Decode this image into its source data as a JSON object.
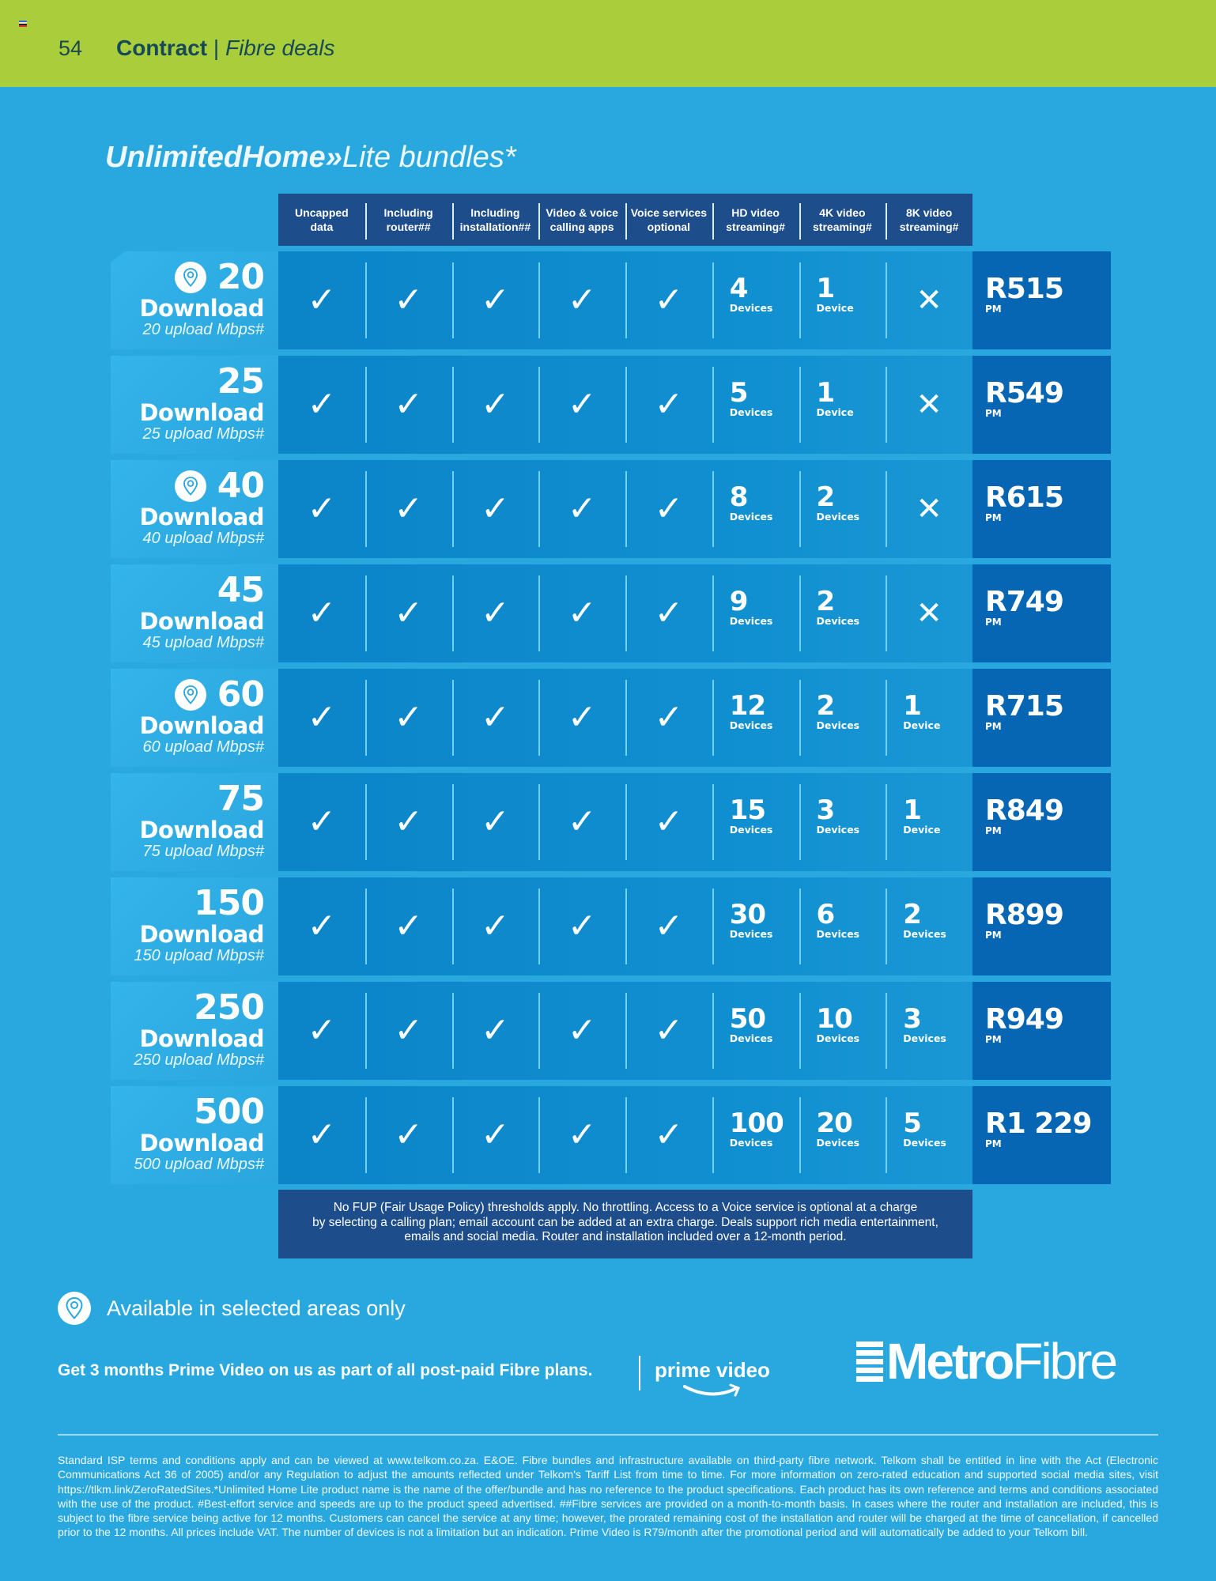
{
  "header": {
    "page_number": "54",
    "section_bold": "Contract",
    "separator": " | ",
    "section_italic": "Fibre deals"
  },
  "title": {
    "bold": "UnlimitedHome»",
    "light": "Lite bundles*"
  },
  "columns": [
    {
      "line1": "Uncapped",
      "line2": "data"
    },
    {
      "line1": "Including",
      "line2": "router##"
    },
    {
      "line1": "Including",
      "line2": "installation##"
    },
    {
      "line1": "Video & voice",
      "line2": "calling apps"
    },
    {
      "line1": "Voice services",
      "line2": "optional"
    },
    {
      "line1": "HD video",
      "line2": "streaming#"
    },
    {
      "line1": "4K video",
      "line2": "streaming#"
    },
    {
      "line1": "8K video",
      "line2": "streaming#"
    }
  ],
  "download_label": "Download",
  "price_suffix": "PM",
  "icons": {
    "check": "✓",
    "cross": "✕",
    "location": "location-pin-icon"
  },
  "bundles": [
    {
      "speed": "20",
      "pin": true,
      "upload": "20 upload Mbps#",
      "hd": "4",
      "hd_unit": "Devices",
      "k4": "1",
      "k4_unit": "Device",
      "k8": null,
      "k8_unit": "",
      "price": "R515"
    },
    {
      "speed": "25",
      "pin": false,
      "upload": "25 upload Mbps#",
      "hd": "5",
      "hd_unit": "Devices",
      "k4": "1",
      "k4_unit": "Device",
      "k8": null,
      "k8_unit": "",
      "price": "R549"
    },
    {
      "speed": "40",
      "pin": true,
      "upload": "40 upload Mbps#",
      "hd": "8",
      "hd_unit": "Devices",
      "k4": "2",
      "k4_unit": "Devices",
      "k8": null,
      "k8_unit": "",
      "price": "R615"
    },
    {
      "speed": "45",
      "pin": false,
      "upload": "45 upload Mbps#",
      "hd": "9",
      "hd_unit": "Devices",
      "k4": "2",
      "k4_unit": "Devices",
      "k8": null,
      "k8_unit": "",
      "price": "R749"
    },
    {
      "speed": "60",
      "pin": true,
      "upload": "60 upload Mbps#",
      "hd": "12",
      "hd_unit": "Devices",
      "k4": "2",
      "k4_unit": "Devices",
      "k8": "1",
      "k8_unit": "Device",
      "price": "R715"
    },
    {
      "speed": "75",
      "pin": false,
      "upload": "75 upload Mbps#",
      "hd": "15",
      "hd_unit": "Devices",
      "k4": "3",
      "k4_unit": "Devices",
      "k8": "1",
      "k8_unit": "Device",
      "price": "R849"
    },
    {
      "speed": "150",
      "pin": false,
      "upload": "150 upload Mbps#",
      "hd": "30",
      "hd_unit": "Devices",
      "k4": "6",
      "k4_unit": "Devices",
      "k8": "2",
      "k8_unit": "Devices",
      "price": "R899"
    },
    {
      "speed": "250",
      "pin": false,
      "upload": "250 upload Mbps#",
      "hd": "50",
      "hd_unit": "Devices",
      "k4": "10",
      "k4_unit": "Devices",
      "k8": "3",
      "k8_unit": "Devices",
      "price": "R949"
    },
    {
      "speed": "500",
      "pin": false,
      "upload": "500 upload Mbps#",
      "hd": "100",
      "hd_unit": "Devices",
      "k4": "20",
      "k4_unit": "Devices",
      "k8": "5",
      "k8_unit": "Devices",
      "price": "R1 229"
    }
  ],
  "note": {
    "line1": "No FUP (Fair Usage Policy) thresholds apply. No throttling. Access to a Voice service is optional at a charge",
    "line2": "by selecting a calling plan; email account can be added at an extra charge. Deals support rich media entertainment,",
    "line3": "emails and social media. Router and installation included over a 12-month period."
  },
  "availability": "Available in selected areas only",
  "promo": {
    "text": "Get 3 months Prime Video on us as part of all post-paid Fibre plans.",
    "logo": "prime video"
  },
  "partner_logo": {
    "bold": "Metro",
    "light": "Fibre"
  },
  "fine_print": "Standard ISP terms and conditions apply and can be viewed at www.telkom.co.za. E&OE. Fibre bundles and infrastructure available on third-party fibre network. Telkom shall be entitled in line with the Act (Electronic Communications Act 36 of 2005) and/or any Regulation to adjust the amounts reflected under Telkom's Tariff List from time to time. For more information on zero-rated education and supported social media sites, visit https://tlkm.link/ZeroRatedSites.*Unlimited Home Lite product name is the name of the offer/bundle and has no reference to the product specifications. Each product has its own reference and terms and conditions associated with the use of the product. #Best-effort service and speeds are up to the product speed advertised. ##Fibre services are provided on a month-to-month basis. In cases where the router and installation are included, this is subject to the fibre service being active for 12 months. Customers can cancel the service at any time; however, the prorated remaining cost of the installation and router will be charged at the time of cancellation, if cancelled prior to the 12 months. All prices include VAT. The number of devices is not a limitation but an indication. Prime Video is R79/month after the promotional period and will automatically be added to your Telkom bill.",
  "colors": {
    "header_bg": "#a9cd3b",
    "page_bg": "#29a8df",
    "table_header": "#1e4d8c",
    "cell_bg": "#0b84c8",
    "price_bg": "#0766b3"
  }
}
